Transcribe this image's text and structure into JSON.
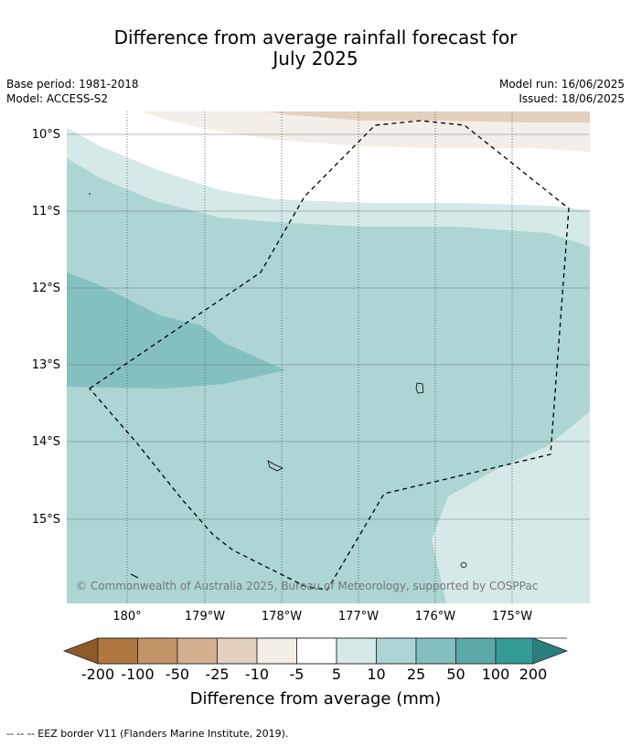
{
  "title_line1": "Difference from average rainfall forecast for",
  "title_line2": "July 2025",
  "base_period": "Base period: 1981-2018",
  "model": "Model: ACCESS-S2",
  "model_run": "Model run: 16/06/2025",
  "issued": "Issued: 18/06/2025",
  "copyright": "© Commonwealth of Australia 2025, Bureau of Meteorology, supported by COSPPac",
  "footnote": "-- -- -- EEZ border V11 (Flanders Marine Institute, 2019).",
  "map": {
    "lat_labels": [
      "10°S",
      "11°S",
      "12°S",
      "13°S",
      "14°S",
      "15°S"
    ],
    "lon_labels": [
      "180°",
      "179°W",
      "178°W",
      "177°W",
      "176°W",
      "175°W"
    ]
  },
  "colorbar": {
    "label": "Difference from average (mm)",
    "ticks": [
      "-200",
      "-100",
      "-50",
      "-25",
      "-10",
      "-5",
      "5",
      "10",
      "25",
      "50",
      "100",
      "200"
    ],
    "colors": [
      "#8f5a2a",
      "#b07840",
      "#c29467",
      "#d4b08f",
      "#e3d0bf",
      "#f3eee8",
      "#ffffff",
      "#d4e9e8",
      "#acd5d4",
      "#84c0bf",
      "#5ba9a9",
      "#349a96",
      "#2a7f7c"
    ]
  }
}
